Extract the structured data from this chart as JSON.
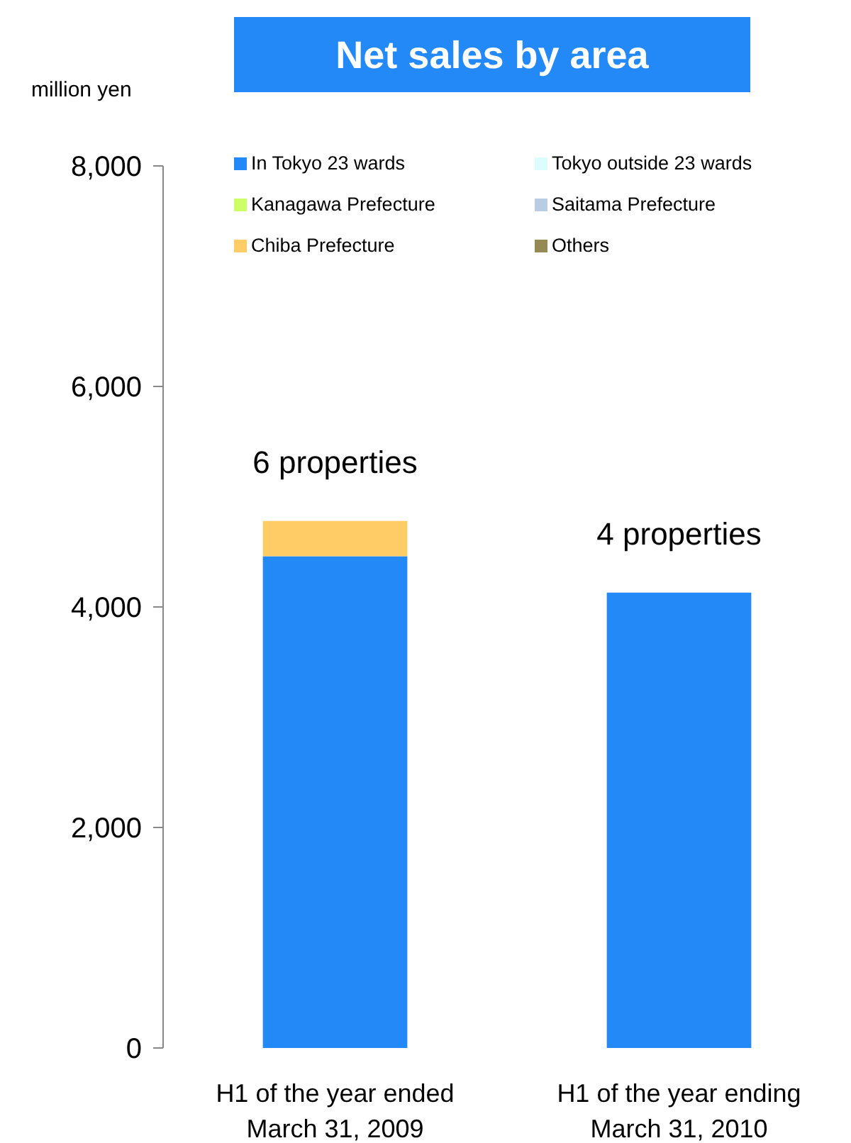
{
  "chart_data": {
    "type": "bar",
    "title": "Net sales by area",
    "ylabel": "million yen",
    "categories": [
      "H1 of the year ended March 31, 2009",
      "H1 of the year ending March 31, 2010"
    ],
    "stacked": true,
    "series": [
      {
        "name": "In Tokyo 23 wards",
        "color": "#2389f7",
        "values": [
          4460,
          4130
        ]
      },
      {
        "name": "Tokyo outside 23 wards",
        "color": "#ddfdfd",
        "values": [
          0,
          0
        ]
      },
      {
        "name": "Kanagawa Prefecture",
        "color": "#ccff66",
        "values": [
          0,
          0
        ]
      },
      {
        "name": "Saitama Prefecture",
        "color": "#b8cce4",
        "values": [
          0,
          0
        ]
      },
      {
        "name": "Chiba Prefecture",
        "color": "#ffcc66",
        "values": [
          320,
          0
        ]
      },
      {
        "name": "Others",
        "color": "#948a54",
        "values": [
          0,
          0
        ]
      }
    ],
    "ylim": [
      0,
      8000
    ],
    "yticks": [
      {
        "value": 0,
        "label": "0"
      },
      {
        "value": 2000,
        "label": "2,000"
      },
      {
        "value": 4000,
        "label": "4,000"
      },
      {
        "value": 6000,
        "label": "6,000"
      },
      {
        "value": 8000,
        "label": "8,000"
      }
    ],
    "grid": false,
    "legend": "top",
    "annotations": [
      "6 properties",
      "4 properties"
    ]
  }
}
